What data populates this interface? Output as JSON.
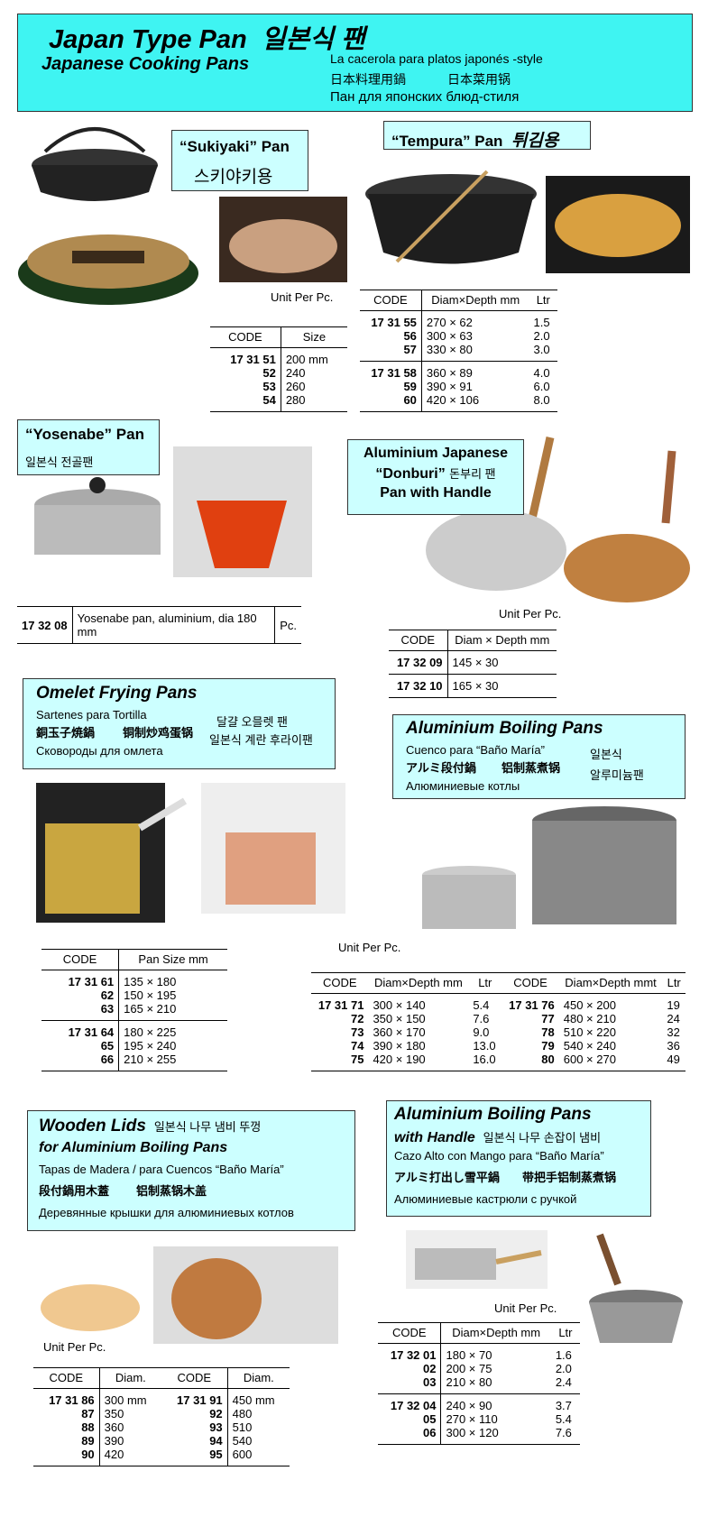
{
  "header": {
    "title": "Japan Type Pan",
    "title_ko": "일본식 팬",
    "subtitle": "Japanese Cooking Pans",
    "lines": [
      "La cacerola para platos japonés -style",
      "日本料理用鍋",
      "日本菜用锅",
      "Пан для японских блюд-стиля"
    ]
  },
  "sukiyaki": {
    "label": "“Sukiyaki” Pan",
    "label_ko": "스키야키용",
    "unit": "Unit Per Pc.",
    "table": {
      "headers": [
        "CODE",
        "Size"
      ],
      "groups": [
        [
          [
            "17 31 51",
            "200  mm"
          ],
          [
            "52",
            "240"
          ],
          [
            "53",
            "260"
          ],
          [
            "54",
            "280"
          ]
        ]
      ]
    }
  },
  "tempura": {
    "label": "“Tempura” Pan",
    "label_ko": "튀김용",
    "table": {
      "headers": [
        "CODE",
        "Diam×Depth mm",
        "Ltr"
      ],
      "groups": [
        [
          [
            "17 31 55",
            "270 × 62",
            "1.5"
          ],
          [
            "56",
            "300 × 63",
            "2.0"
          ],
          [
            "57",
            "330 × 80",
            "3.0"
          ]
        ],
        [
          [
            "17 31 58",
            "360 ×  89",
            "4.0"
          ],
          [
            "59",
            "390 ×  91",
            "6.0"
          ],
          [
            "60",
            "420 × 106",
            "8.0"
          ]
        ]
      ]
    }
  },
  "yosenabe": {
    "label": "“Yosenabe” Pan",
    "label_ko": "일본식 전골팬",
    "table": {
      "groups": [
        [
          [
            "17 32 08",
            "Yosenabe pan, aluminium, dia 180 mm",
            "Pc."
          ]
        ]
      ]
    }
  },
  "donburi": {
    "lines": [
      "Aluminium Japanese",
      "“Donburi”",
      "돈부리 팬",
      "Pan with Handle"
    ],
    "unit": "Unit Per Pc.",
    "table": {
      "headers": [
        "CODE",
        "Diam × Depth mm"
      ],
      "groups": [
        [
          [
            "17 32 09",
            "145 × 30"
          ]
        ],
        [
          [
            "17 32 10",
            "165 × 30"
          ]
        ]
      ]
    }
  },
  "omelet": {
    "title": "Omelet Frying Pans",
    "lines": [
      "Sartenes para Tortilla",
      "銅玉子焼鍋",
      "铜制炒鸡蛋锅",
      "Сковороды для омлета"
    ],
    "ko": [
      "달걀 오믈렛 팬",
      "일본식 계란 후라이팬"
    ],
    "table": {
      "headers": [
        "CODE",
        "Pan Size mm"
      ],
      "groups": [
        [
          [
            "17 31 61",
            "135 × 180"
          ],
          [
            "62",
            "150 × 195"
          ],
          [
            "63",
            "165 × 210"
          ]
        ],
        [
          [
            "17 31 64",
            "180 × 225"
          ],
          [
            "65",
            "195 × 240"
          ],
          [
            "66",
            "210 × 255"
          ]
        ]
      ]
    }
  },
  "boiling": {
    "title": "Aluminium Boiling Pans",
    "lines": [
      "Cuenco para “Baño María”",
      "アルミ段付鍋",
      "铝制蒸煮锅",
      "Алюминиевые котлы"
    ],
    "ko": [
      "일본식",
      "알루미늄팬"
    ],
    "unit": "Unit Per Pc.",
    "table": {
      "headers": [
        "CODE",
        "Diam×Depth mm",
        "Ltr",
        "CODE",
        "Diam×Depth mmt",
        "Ltr"
      ],
      "groups": [
        [
          [
            "17 31 71",
            "300 × 140",
            "5.4",
            "17 31 76",
            "450 × 200",
            "19"
          ],
          [
            "72",
            "350 × 150",
            "7.6",
            "77",
            "480 × 210",
            "24"
          ],
          [
            "73",
            "360 × 170",
            "9.0",
            "78",
            "510 × 220",
            "32"
          ],
          [
            "74",
            "390 × 180",
            "13.0",
            "79",
            "540 × 240",
            "36"
          ],
          [
            "75",
            "420 × 190",
            "16.0",
            "80",
            "600 × 270",
            "49"
          ]
        ]
      ]
    }
  },
  "lids": {
    "title": "Wooden Lids",
    "title_ko": "일본식 나무 냄비 뚜껑",
    "subtitle": "for Aluminium Boiling Pans",
    "lines": [
      "Tapas de Madera / para Cuencos “Baño María”",
      "段付鍋用木蓋",
      "铝制蒸锅木盖",
      "Деревянные крышки для алюминиевых котлов"
    ],
    "unit": "Unit Per Pc.",
    "table": {
      "headers": [
        "CODE",
        "Diam.",
        "CODE",
        "Diam."
      ],
      "groups": [
        [
          [
            "17 31 86",
            "300 mm",
            "17 31 91",
            "450 mm"
          ],
          [
            "87",
            "350",
            "92",
            "480"
          ],
          [
            "88",
            "360",
            "93",
            "510"
          ],
          [
            "89",
            "390",
            "94",
            "540"
          ],
          [
            "90",
            "420",
            "95",
            "600"
          ]
        ]
      ]
    }
  },
  "handle": {
    "title": "Aluminium Boiling Pans",
    "subtitle": "with Handle",
    "subtitle_ko": "일본식 나무 손잡이 냄비",
    "lines": [
      "Cazo Alto con Mango para “Baño María”",
      "アルミ打出し雪平鍋",
      "带把手铝制蒸煮锅",
      "Алюминиевые кастрюли с ручкой"
    ],
    "unit": "Unit Per Pc.",
    "table": {
      "headers": [
        "CODE",
        "Diam×Depth mm",
        "Ltr"
      ],
      "groups": [
        [
          [
            "17 32 01",
            "180 × 70",
            "1.6"
          ],
          [
            "02",
            "200 × 75",
            "2.0"
          ],
          [
            "03",
            "210 × 80",
            "2.4"
          ]
        ],
        [
          [
            "17 32 04",
            "240 ×  90",
            "3.7"
          ],
          [
            "05",
            "270 × 110",
            "5.4"
          ],
          [
            "06",
            "300 × 120",
            "7.6"
          ]
        ]
      ]
    }
  }
}
